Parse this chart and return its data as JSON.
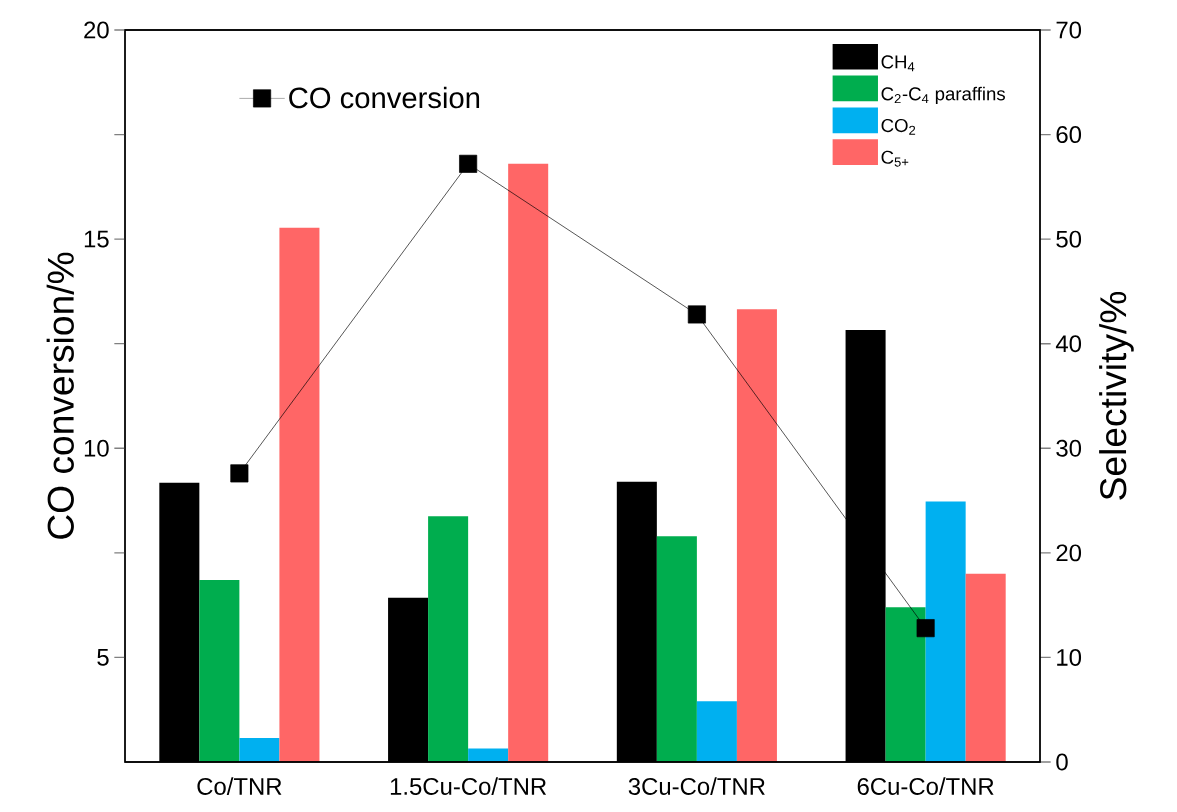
{
  "chart_data": {
    "type": "bar",
    "categories": [
      "Co/TNR",
      "1.5Cu-Co/TNR",
      "3Cu-Co/TNR",
      "6Cu-Co/TNR"
    ],
    "series": [
      {
        "name": "CH$_{4}$",
        "color": "#000000",
        "axis": "y2",
        "values": [
          26.7,
          15.7,
          26.8,
          41.3
        ]
      },
      {
        "name": "C$_{2}$-C$_{4}$ paraffins",
        "color": "#00ad4e",
        "axis": "y2",
        "values": [
          17.4,
          23.5,
          21.6,
          14.8
        ]
      },
      {
        "name": "CO$_{2}$",
        "color": "#00b0f0",
        "axis": "y2",
        "values": [
          2.3,
          1.3,
          5.8,
          24.9
        ]
      },
      {
        "name": "C$_{5+}$",
        "color": "#ff6666",
        "axis": "y2",
        "values": [
          51.1,
          57.2,
          43.3,
          18.0
        ]
      },
      {
        "name": "CO conversion",
        "color": "#000000",
        "type": "line",
        "axis": "y",
        "values": [
          9.4,
          16.8,
          13.2,
          5.7
        ]
      }
    ],
    "ylabel": "CO conversion/%",
    "y2label": "Selectivity/%",
    "ylim": [
      2.5,
      20
    ],
    "yticks": [
      5,
      {
        "value": 7.5,
        "label": null
      },
      10,
      {
        "value": 12.5,
        "label": null
      },
      15,
      {
        "value": 17.5,
        "label": null
      },
      20
    ],
    "y2lim": [
      0,
      70
    ],
    "y2ticks": [
      0,
      10,
      20,
      30,
      40,
      50,
      60,
      70
    ],
    "marker": "square",
    "legend": "top right"
  }
}
